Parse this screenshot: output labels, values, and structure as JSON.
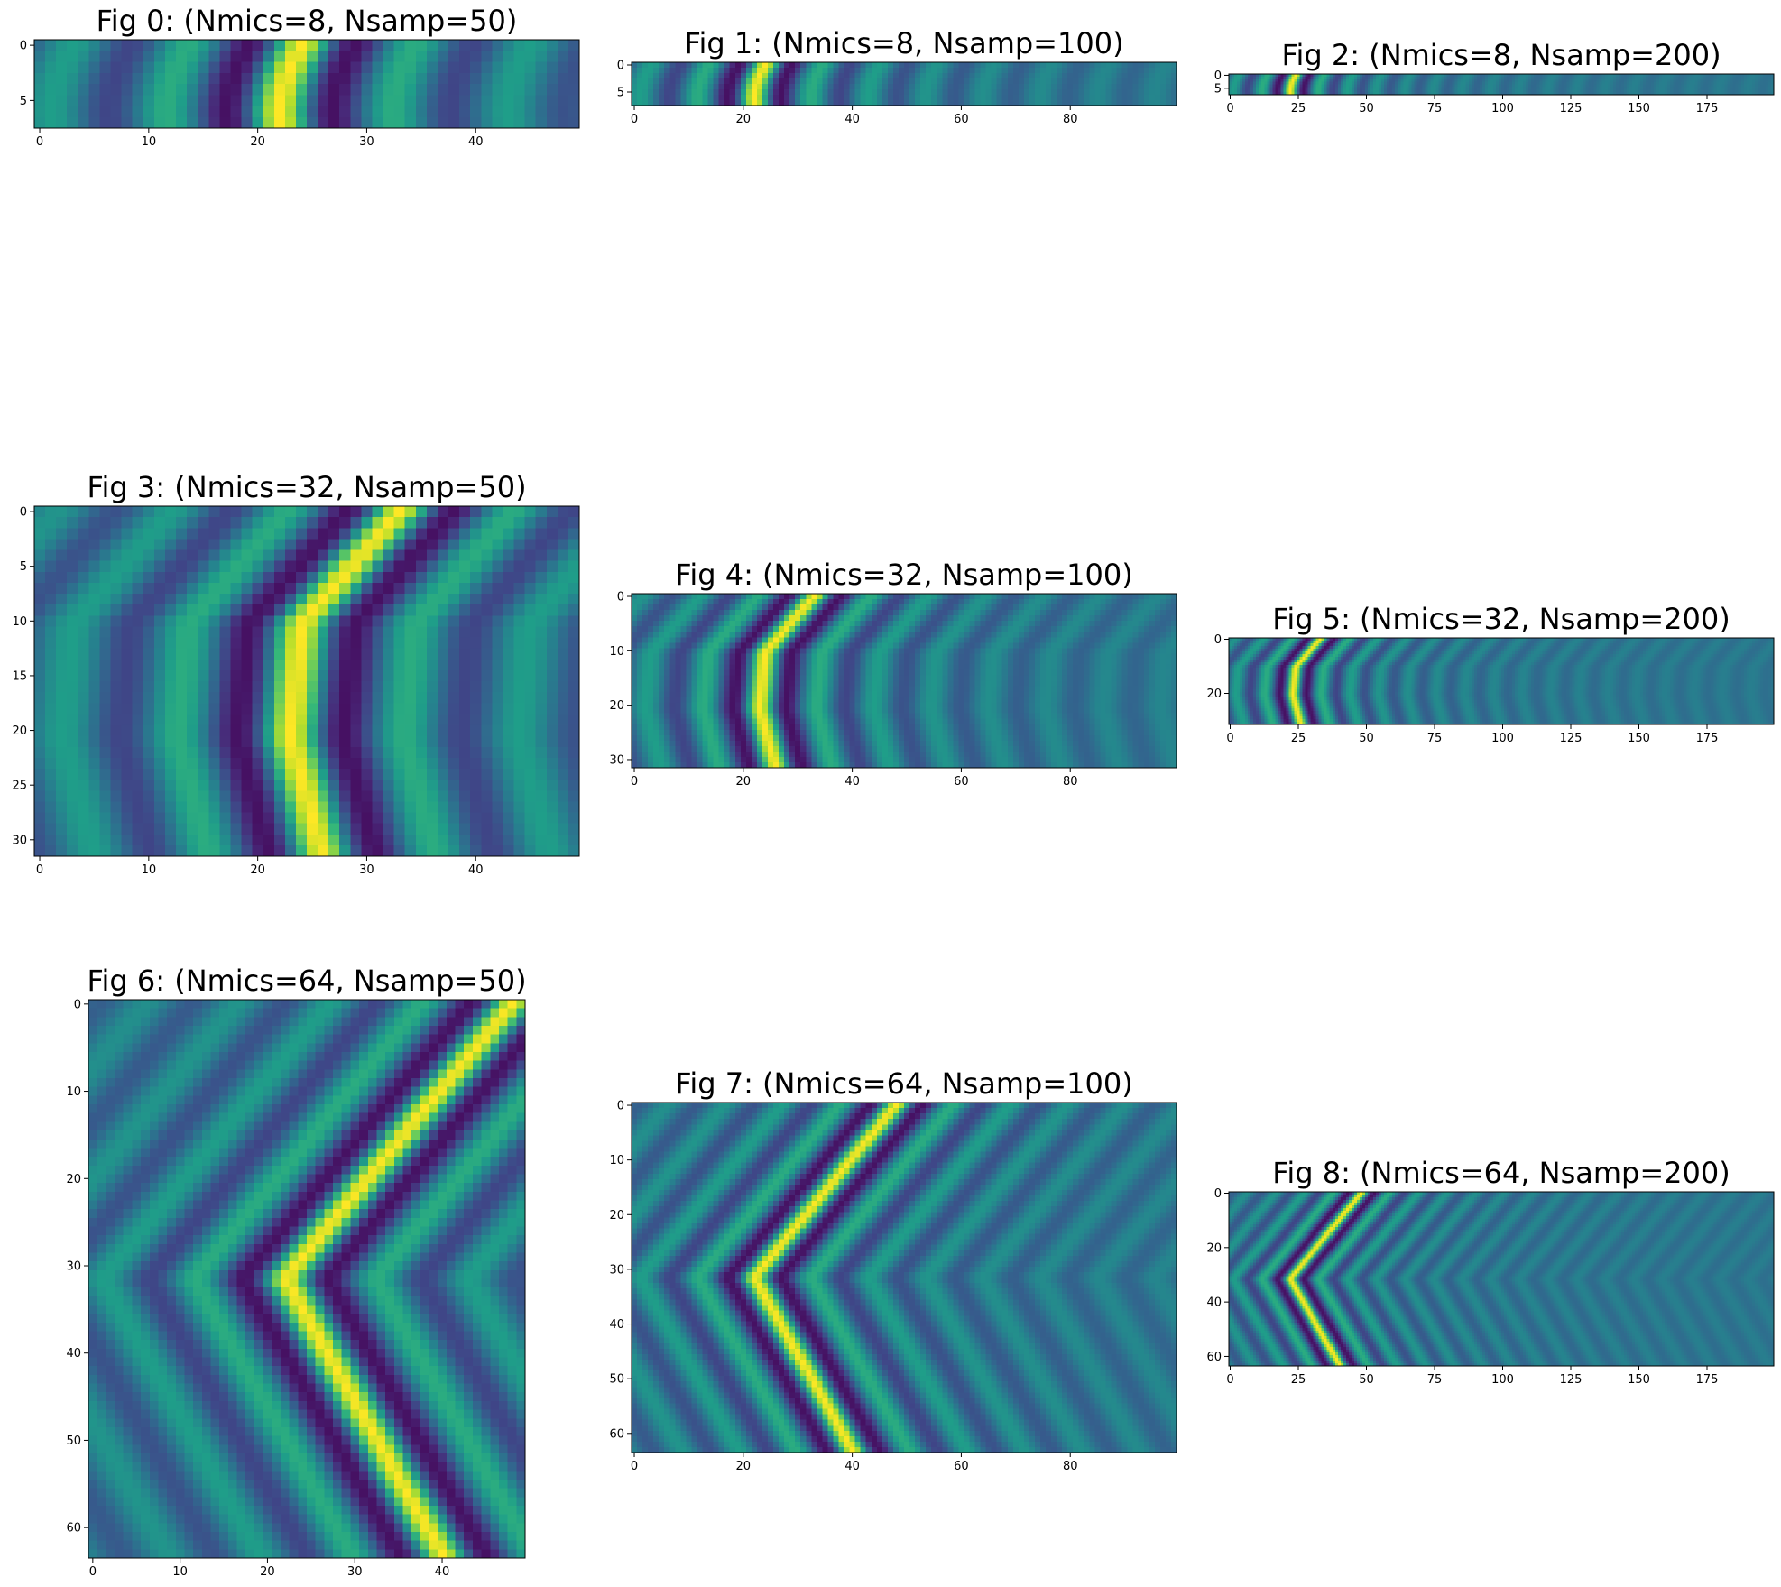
{
  "chart_data": [
    {
      "type": "heatmap",
      "title": "Fig 0: (Nmics=8, Nsamp=50)",
      "nmics": 8,
      "nsamp": 50,
      "xticks": [
        0,
        10,
        20,
        30,
        40
      ],
      "yticks": [
        0,
        5
      ],
      "peak_x": [
        24,
        23.5,
        23,
        22.6,
        22.3,
        22.1,
        22,
        22.1
      ],
      "colormap": "viridis",
      "grid": false
    },
    {
      "type": "heatmap",
      "title": "Fig 1: (Nmics=8, Nsamp=100)",
      "nmics": 8,
      "nsamp": 100,
      "xticks": [
        0,
        20,
        40,
        60,
        80
      ],
      "yticks": [
        0,
        5
      ],
      "peak_x": [
        24,
        23.5,
        23,
        22.6,
        22.3,
        22.1,
        22,
        22.1
      ],
      "colormap": "viridis",
      "grid": false
    },
    {
      "type": "heatmap",
      "title": "Fig 2: (Nmics=8, Nsamp=200)",
      "nmics": 8,
      "nsamp": 200,
      "xticks": [
        0,
        25,
        50,
        75,
        100,
        125,
        150,
        175
      ],
      "yticks": [
        0,
        5
      ],
      "peak_x": [
        24,
        23.5,
        23,
        22.6,
        22.3,
        22.1,
        22,
        22.1
      ],
      "colormap": "viridis",
      "grid": false
    },
    {
      "type": "heatmap",
      "title": "Fig 3: (Nmics=32, Nsamp=50)",
      "nmics": 32,
      "nsamp": 50,
      "xticks": [
        0,
        10,
        20,
        30,
        40
      ],
      "yticks": [
        0,
        5,
        10,
        15,
        20,
        25,
        30
      ],
      "peak_x": [
        33,
        24,
        23,
        25.8
      ],
      "colormap": "viridis",
      "grid": false
    },
    {
      "type": "heatmap",
      "title": "Fig 4: (Nmics=32, Nsamp=100)",
      "nmics": 32,
      "nsamp": 100,
      "xticks": [
        0,
        20,
        40,
        60,
        80
      ],
      "yticks": [
        0,
        10,
        20,
        30
      ],
      "peak_x": [
        33,
        24,
        23,
        25.8
      ],
      "colormap": "viridis",
      "grid": false
    },
    {
      "type": "heatmap",
      "title": "Fig 5: (Nmics=32, Nsamp=200)",
      "nmics": 32,
      "nsamp": 200,
      "xticks": [
        0,
        25,
        50,
        75,
        100,
        125,
        150,
        175
      ],
      "yticks": [
        0,
        20
      ],
      "peak_x": [
        33,
        24,
        23,
        25.8
      ],
      "colormap": "viridis",
      "grid": false
    },
    {
      "type": "heatmap",
      "title": "Fig 6: (Nmics=64, Nsamp=50)",
      "nmics": 64,
      "nsamp": 50,
      "xticks": [
        0,
        10,
        20,
        30,
        40
      ],
      "yticks": [
        0,
        10,
        20,
        30,
        40,
        50,
        60
      ],
      "peak_x": [
        48,
        22,
        40
      ],
      "colormap": "viridis",
      "grid": false
    },
    {
      "type": "heatmap",
      "title": "Fig 7: (Nmics=64, Nsamp=100)",
      "nmics": 64,
      "nsamp": 100,
      "xticks": [
        0,
        20,
        40,
        60,
        80
      ],
      "yticks": [
        0,
        10,
        20,
        30,
        40,
        50,
        60
      ],
      "peak_x": [
        48,
        22,
        40
      ],
      "colormap": "viridis",
      "grid": false
    },
    {
      "type": "heatmap",
      "title": "Fig 8: (Nmics=64, Nsamp=200)",
      "nmics": 64,
      "nsamp": 200,
      "xticks": [
        0,
        25,
        50,
        75,
        100,
        125,
        150,
        175
      ],
      "yticks": [
        0,
        20,
        40,
        60
      ],
      "peak_x": [
        48,
        22,
        40
      ],
      "colormap": "viridis",
      "grid": false
    }
  ]
}
